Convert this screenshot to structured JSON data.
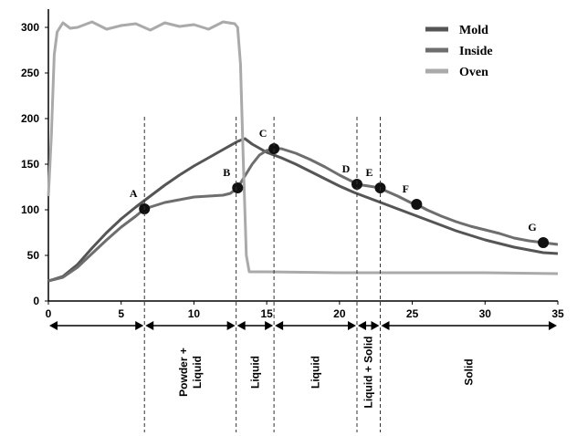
{
  "chart_data": {
    "type": "line",
    "xlim": [
      0,
      35
    ],
    "ylim": [
      0,
      320
    ],
    "x_ticks": [
      0,
      5,
      10,
      15,
      20,
      25,
      30,
      35
    ],
    "y_ticks": [
      0,
      50,
      100,
      150,
      200,
      250,
      300
    ],
    "grid": false,
    "legend_position": "top-right",
    "series": [
      {
        "name": "Mold",
        "color": "#555555",
        "points": [
          [
            0,
            22
          ],
          [
            1,
            27
          ],
          [
            2,
            40
          ],
          [
            3,
            58
          ],
          [
            4,
            75
          ],
          [
            5,
            90
          ],
          [
            6,
            103
          ],
          [
            7,
            115
          ],
          [
            8,
            127
          ],
          [
            9,
            138
          ],
          [
            10,
            148
          ],
          [
            11,
            157
          ],
          [
            12,
            166
          ],
          [
            13,
            175
          ],
          [
            13.5,
            178
          ],
          [
            14,
            172
          ],
          [
            15,
            163
          ],
          [
            16,
            157
          ],
          [
            17,
            150
          ],
          [
            18,
            142
          ],
          [
            19,
            134
          ],
          [
            20,
            126
          ],
          [
            21,
            119
          ],
          [
            22,
            113
          ],
          [
            23,
            107
          ],
          [
            24,
            101
          ],
          [
            25,
            95
          ],
          [
            26,
            89
          ],
          [
            27,
            83
          ],
          [
            28,
            77
          ],
          [
            29,
            72
          ],
          [
            30,
            67
          ],
          [
            31,
            63
          ],
          [
            32,
            59
          ],
          [
            33,
            56
          ],
          [
            34,
            53
          ],
          [
            35,
            52
          ]
        ]
      },
      {
        "name": "Inside",
        "color": "#6e6e6e",
        "points": [
          [
            0,
            22
          ],
          [
            1,
            26
          ],
          [
            2,
            37
          ],
          [
            3,
            52
          ],
          [
            4,
            67
          ],
          [
            5,
            81
          ],
          [
            6,
            93
          ],
          [
            6.6,
            101
          ],
          [
            8,
            108
          ],
          [
            9,
            111
          ],
          [
            10,
            114
          ],
          [
            11,
            115
          ],
          [
            12,
            116
          ],
          [
            12.5,
            118
          ],
          [
            13,
            124
          ],
          [
            13.5,
            137
          ],
          [
            14,
            150
          ],
          [
            14.5,
            160
          ],
          [
            15,
            165
          ],
          [
            15.5,
            167
          ],
          [
            16,
            167
          ],
          [
            17,
            162
          ],
          [
            18,
            155
          ],
          [
            19,
            147
          ],
          [
            20,
            138
          ],
          [
            21,
            130
          ],
          [
            21.2,
            128
          ],
          [
            22,
            126
          ],
          [
            22.8,
            124
          ],
          [
            23,
            122
          ],
          [
            24,
            115
          ],
          [
            25,
            107
          ],
          [
            25.3,
            106
          ],
          [
            26,
            100
          ],
          [
            27,
            93
          ],
          [
            28,
            87
          ],
          [
            29,
            82
          ],
          [
            30,
            78
          ],
          [
            31,
            74
          ],
          [
            32,
            69
          ],
          [
            33,
            66
          ],
          [
            34,
            64
          ],
          [
            35,
            62
          ]
        ]
      },
      {
        "name": "Oven",
        "color": "#aaaaaa",
        "points": [
          [
            0,
            115
          ],
          [
            0.2,
            180
          ],
          [
            0.4,
            270
          ],
          [
            0.6,
            295
          ],
          [
            1,
            305
          ],
          [
            1.5,
            299
          ],
          [
            2,
            300
          ],
          [
            3,
            306
          ],
          [
            4,
            298
          ],
          [
            5,
            302
          ],
          [
            6,
            304
          ],
          [
            7,
            297
          ],
          [
            8,
            305
          ],
          [
            9,
            301
          ],
          [
            10,
            303
          ],
          [
            11,
            298
          ],
          [
            12,
            306
          ],
          [
            12.8,
            304
          ],
          [
            13,
            300
          ],
          [
            13.2,
            260
          ],
          [
            13.4,
            150
          ],
          [
            13.6,
            50
          ],
          [
            13.8,
            32
          ],
          [
            15,
            32
          ],
          [
            20,
            31
          ],
          [
            25,
            31
          ],
          [
            30,
            31
          ],
          [
            35,
            30
          ]
        ]
      }
    ],
    "points": [
      {
        "label": "A",
        "x": 6.6,
        "y": 101
      },
      {
        "label": "B",
        "x": 13.0,
        "y": 124
      },
      {
        "label": "C",
        "x": 15.5,
        "y": 167
      },
      {
        "label": "D",
        "x": 21.2,
        "y": 128
      },
      {
        "label": "E",
        "x": 22.8,
        "y": 124
      },
      {
        "label": "F",
        "x": 25.3,
        "y": 106
      },
      {
        "label": "G",
        "x": 34.0,
        "y": 64
      }
    ],
    "phase_boundaries": [
      6.6,
      12.9,
      15.5,
      21.2,
      22.8
    ],
    "phases": [
      {
        "lines": [
          "Powder +",
          "Liquid"
        ],
        "from": 6.6,
        "to": 12.9
      },
      {
        "lines": [
          "Liquid"
        ],
        "from": 12.9,
        "to": 15.5
      },
      {
        "lines": [
          "Liquid"
        ],
        "from": 15.5,
        "to": 21.2
      },
      {
        "lines": [
          "Liquid + Solid"
        ],
        "from": 21.2,
        "to": 22.8
      },
      {
        "lines": [
          "Solid"
        ],
        "from": 22.8,
        "to": 35
      }
    ]
  }
}
